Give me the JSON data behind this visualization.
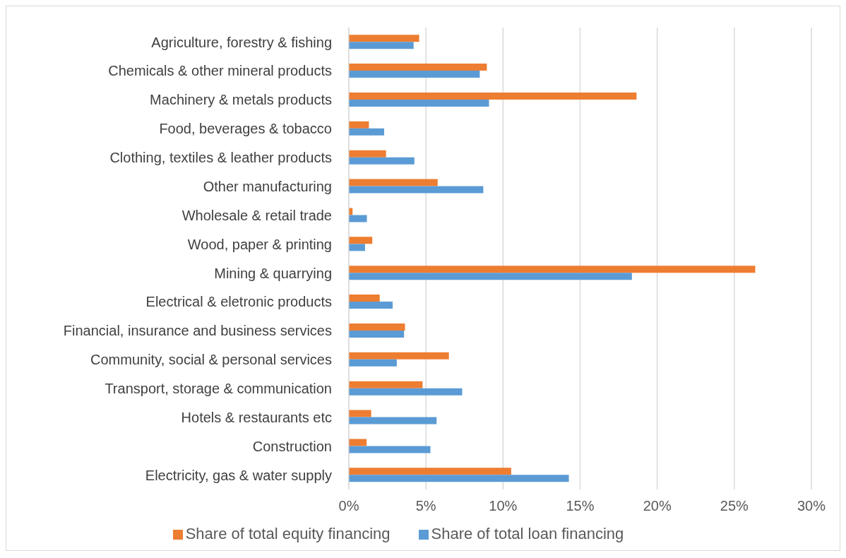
{
  "chart_data": {
    "type": "bar",
    "orientation": "horizontal",
    "categories": [
      "Agriculture, forestry & fishing",
      "Chemicals & other mineral products",
      "Machinery & metals products",
      "Food, beverages & tobacco",
      "Clothing, textiles & leather products",
      "Other manufacturing",
      "Wholesale & retail trade",
      "Wood, paper & printing",
      "Mining & quarrying",
      "Electrical & eletronic products",
      "Financial, insurance and business services",
      "Community, social & personal services",
      "Transport, storage & communication",
      "Hotels & restaurants etc",
      "Construction",
      "Electricity, gas & water supply"
    ],
    "series": [
      {
        "name": "Share of total equity financing",
        "color": "#ed7d31",
        "values": [
          4.56,
          8.95,
          18.66,
          1.3,
          2.41,
          5.76,
          0.24,
          1.52,
          26.36,
          2.0,
          3.64,
          6.49,
          4.78,
          1.45,
          1.15,
          10.53
        ]
      },
      {
        "name": "Share of total loan financing",
        "color": "#5b9bd5",
        "values": [
          4.2,
          8.49,
          9.09,
          2.29,
          4.25,
          8.72,
          1.17,
          1.05,
          18.36,
          2.84,
          3.58,
          3.11,
          7.35,
          5.69,
          5.29,
          14.27
        ]
      }
    ],
    "xlim": [
      0,
      30
    ],
    "xticks": [
      {
        "value": 0,
        "label": "0%"
      },
      {
        "value": 5,
        "label": "5%"
      },
      {
        "value": 10,
        "label": "10%"
      },
      {
        "value": 15,
        "label": "15%"
      },
      {
        "value": 20,
        "label": "20%"
      },
      {
        "value": 25,
        "label": "25%"
      },
      {
        "value": 30,
        "label": "30%"
      }
    ],
    "grid": "x",
    "legend": "bottom"
  }
}
